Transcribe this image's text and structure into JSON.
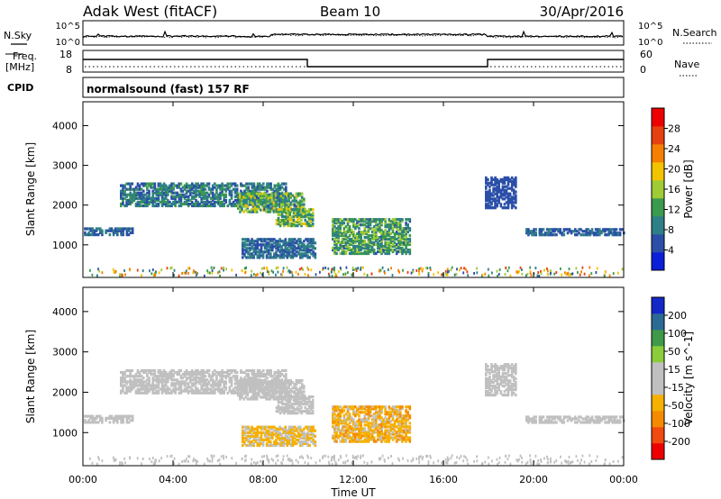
{
  "header": {
    "title": "Adak West (fitACF)",
    "beam": "Beam 10",
    "date": "30/Apr/2016"
  },
  "small_panels": {
    "nsky_label": "N.Sky",
    "nsearch_label": "N.Search",
    "nsky_ticks": [
      "10^5",
      "10^0"
    ],
    "nsearch_ticks": [
      "10^5",
      "10^0"
    ],
    "freq_label_1": "Freq.",
    "freq_label_2": "[MHz]",
    "freq_ticks": [
      "18",
      "8"
    ],
    "nave_label": "Nave",
    "nave_ticks": [
      "60",
      "0"
    ],
    "cpid_label": "CPID",
    "cpid_text": "normalsound (fast) 157 RF"
  },
  "colors": {
    "power_scale": [
      "#0a1fd9",
      "#2b4fa8",
      "#2f7f86",
      "#3a9a4d",
      "#9fcb35",
      "#f2c300",
      "#f57f00",
      "#e64010",
      "#ee0000"
    ],
    "velocity_scale": [
      "#ee0000",
      "#f04a10",
      "#f58a00",
      "#f5b000",
      "#c0c0c0",
      "#c0c0c0",
      "#8acc3a",
      "#3e9a48",
      "#2b6a95",
      "#1428c8"
    ]
  },
  "chart_data": [
    {
      "type": "heatmap",
      "panel": "power",
      "ylabel": "Slant Range [km]",
      "yticks": [
        "1000",
        "2000",
        "3000",
        "4000"
      ],
      "ylim": [
        180,
        4600
      ],
      "xlim": [
        0,
        24
      ],
      "colorbar_label": "Power [dB]",
      "colorbar_ticks": [
        "4",
        "8",
        "12",
        "16",
        "20",
        "24",
        "28"
      ],
      "colorbar_range": [
        0,
        30
      ],
      "regions": [
        {
          "t0": 0.0,
          "t1": 2.2,
          "r0": 1220,
          "r1": 1420,
          "v0": 4,
          "v1": 8
        },
        {
          "t0": 1.6,
          "t1": 9.0,
          "r0": 1950,
          "r1": 2550,
          "v0": 4,
          "v1": 12
        },
        {
          "t0": 6.8,
          "t1": 9.8,
          "r0": 1800,
          "r1": 2300,
          "v0": 6,
          "v1": 18
        },
        {
          "t0": 7.0,
          "t1": 10.3,
          "r0": 650,
          "r1": 1150,
          "v0": 4,
          "v1": 10
        },
        {
          "t0": 8.5,
          "t1": 10.2,
          "r0": 1450,
          "r1": 1900,
          "v0": 8,
          "v1": 20
        },
        {
          "t0": 11.0,
          "t1": 14.5,
          "r0": 750,
          "r1": 1650,
          "v0": 6,
          "v1": 16
        },
        {
          "t0": 17.8,
          "t1": 19.2,
          "r0": 1900,
          "r1": 2700,
          "v0": 4,
          "v1": 6
        },
        {
          "t0": 19.6,
          "t1": 24.0,
          "r0": 1220,
          "r1": 1400,
          "v0": 4,
          "v1": 8
        }
      ]
    },
    {
      "type": "heatmap",
      "panel": "velocity",
      "ylabel": "Slant Range [km]",
      "yticks": [
        "1000",
        "2000",
        "3000",
        "4000"
      ],
      "ylim": [
        180,
        4600
      ],
      "xlim": [
        0,
        24
      ],
      "xticks": [
        "00:00",
        "04:00",
        "08:00",
        "12:00",
        "16:00",
        "20:00",
        "00:00"
      ],
      "xlabel": "Time UT",
      "colorbar_label": "Velocity [m s^-1]",
      "colorbar_ticks": [
        "-200",
        "-100",
        "-50",
        "-15",
        "15",
        "50",
        "100",
        "200"
      ],
      "colorbar_range": [
        -250,
        250
      ],
      "regions": [
        {
          "t0": 0.0,
          "t1": 2.2,
          "r0": 1220,
          "r1": 1420,
          "v0": -10,
          "v1": 10
        },
        {
          "t0": 1.6,
          "t1": 9.0,
          "r0": 1950,
          "r1": 2550,
          "v0": -10,
          "v1": 10
        },
        {
          "t0": 6.8,
          "t1": 9.8,
          "r0": 1800,
          "r1": 2300,
          "v0": -12,
          "v1": 12
        },
        {
          "t0": 7.0,
          "t1": 10.3,
          "r0": 650,
          "r1": 1150,
          "v0": -80,
          "v1": -30
        },
        {
          "t0": 8.5,
          "t1": 10.2,
          "r0": 1450,
          "r1": 1900,
          "v0": -10,
          "v1": 10
        },
        {
          "t0": 11.0,
          "t1": 14.5,
          "r0": 750,
          "r1": 1650,
          "v0": -120,
          "v1": -30
        },
        {
          "t0": 17.8,
          "t1": 19.2,
          "r0": 1900,
          "r1": 2700,
          "v0": -10,
          "v1": 10
        },
        {
          "t0": 19.6,
          "t1": 24.0,
          "r0": 1220,
          "r1": 1400,
          "v0": -10,
          "v1": 10
        }
      ]
    }
  ]
}
